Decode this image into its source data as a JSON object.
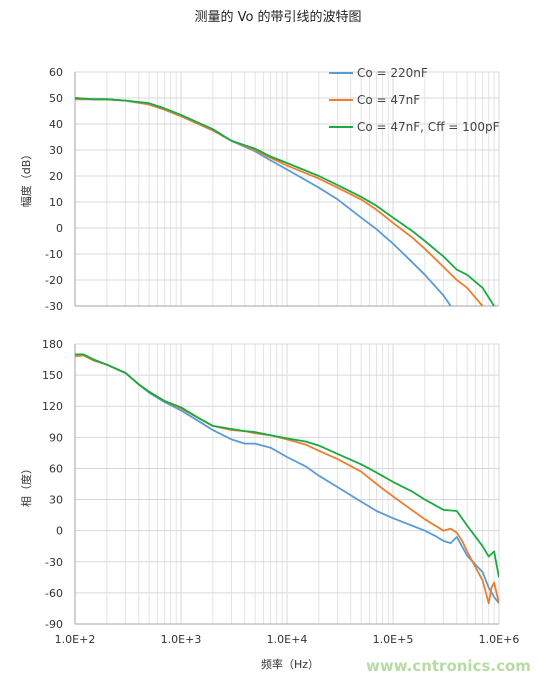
{
  "figure_title": "测量的 Vo 的带引线的波特图",
  "watermark": "www.cntronics.com",
  "colors": {
    "co220": "#5b9bd5",
    "co47": "#ed7d31",
    "co47cff": "#1aab40",
    "grid": "#d9d9d9",
    "axis": "#a6a6a6"
  },
  "chart_data": [
    {
      "type": "line",
      "id": "magnitude",
      "title": "",
      "xlabel": "",
      "ylabel": "幅度（dB）",
      "x_scale": "log",
      "xlim": [
        100,
        1000000
      ],
      "ylim": [
        -30,
        60
      ],
      "yticks": [
        60,
        50,
        40,
        30,
        20,
        10,
        0,
        -10,
        -20,
        -30
      ],
      "ytick_labels": [
        "60",
        "50",
        "40",
        "30",
        "20",
        "10",
        "0",
        "-10",
        "-20",
        "-30"
      ],
      "grid": true,
      "legend": "top-right",
      "series": [
        {
          "name": "Co = 220nF",
          "color": "#5b9bd5",
          "x": [
            100,
            150,
            200,
            300,
            500,
            700,
            1000,
            2000,
            3000,
            5000,
            7000,
            10000,
            20000,
            30000,
            50000,
            70000,
            100000,
            150000,
            200000,
            300000,
            350000
          ],
          "y": [
            50,
            49.5,
            49.5,
            49,
            47.5,
            45.5,
            43,
            37.5,
            33.5,
            29.5,
            26,
            22.5,
            15.5,
            11,
            4,
            -0.5,
            -6,
            -13,
            -18,
            -26,
            -30
          ]
        },
        {
          "name": "Co = 47nF",
          "color": "#ed7d31",
          "x": [
            100,
            150,
            200,
            300,
            500,
            700,
            1000,
            2000,
            3000,
            5000,
            7000,
            10000,
            20000,
            30000,
            50000,
            70000,
            100000,
            150000,
            200000,
            300000,
            400000,
            500000,
            700000
          ],
          "y": [
            49.5,
            49.5,
            49.5,
            49,
            47.5,
            45.5,
            43,
            37.5,
            33.5,
            30,
            27,
            24,
            19,
            15.5,
            11,
            7,
            2,
            -3.5,
            -8,
            -15,
            -20,
            -23,
            -30
          ]
        },
        {
          "name": "Co = 47nF, Cff = 100pF",
          "color": "#1aab40",
          "x": [
            100,
            150,
            200,
            300,
            500,
            700,
            1000,
            2000,
            3000,
            5000,
            7000,
            10000,
            20000,
            30000,
            50000,
            70000,
            100000,
            150000,
            200000,
            300000,
            400000,
            500000,
            700000,
            900000
          ],
          "y": [
            50,
            49.5,
            49.5,
            49,
            48,
            46,
            43.5,
            38,
            33.5,
            30.5,
            27.5,
            25,
            20,
            16.5,
            12,
            8.5,
            4,
            -1,
            -5,
            -11,
            -16,
            -18,
            -23,
            -30
          ]
        }
      ]
    },
    {
      "type": "line",
      "id": "phase",
      "title": "",
      "xlabel": "频率（Hz）",
      "ylabel": "相（度）",
      "x_scale": "log",
      "xlim": [
        100,
        1000000
      ],
      "ylim": [
        -90,
        180
      ],
      "yticks": [
        180,
        150,
        120,
        90,
        60,
        30,
        0,
        -30,
        -60,
        -90
      ],
      "ytick_labels": [
        "180",
        "150",
        "120",
        "90",
        "60",
        "30",
        "0",
        "-30",
        "-60",
        "-90"
      ],
      "xticks": [
        100,
        1000,
        10000,
        100000,
        1000000
      ],
      "xtick_labels": [
        "1.0E+2",
        "1.0E+3",
        "1.0E+4",
        "1.0E+5",
        "1.0E+6"
      ],
      "grid": true,
      "series": [
        {
          "name": "Co = 220nF",
          "color": "#5b9bd5",
          "x": [
            100,
            120,
            150,
            200,
            300,
            400,
            500,
            700,
            1000,
            1500,
            2000,
            3000,
            4000,
            5000,
            7000,
            10000,
            15000,
            20000,
            30000,
            50000,
            70000,
            100000,
            150000,
            200000,
            250000,
            300000,
            350000,
            400000,
            500000,
            700000,
            800000,
            900000,
            1000000
          ],
          "y": [
            170,
            170,
            165,
            160,
            152,
            141,
            133,
            124,
            116,
            105,
            97,
            88,
            84,
            84,
            80,
            71,
            62,
            53,
            42,
            28,
            19,
            12,
            5,
            0,
            -5,
            -10,
            -12,
            -6,
            -24,
            -40,
            -55,
            -64,
            -70
          ]
        },
        {
          "name": "Co = 47nF",
          "color": "#ed7d31",
          "x": [
            100,
            120,
            150,
            200,
            300,
            400,
            500,
            700,
            1000,
            1500,
            2000,
            3000,
            4000,
            5000,
            7000,
            10000,
            15000,
            20000,
            30000,
            50000,
            70000,
            100000,
            150000,
            200000,
            300000,
            350000,
            400000,
            450000,
            500000,
            700000,
            800000,
            850000,
            900000,
            1000000
          ],
          "y": [
            168,
            169,
            164,
            160,
            152,
            141,
            134,
            125,
            118,
            108,
            101,
            97,
            96,
            94,
            92,
            88,
            83,
            77,
            69,
            57,
            45,
            33,
            20,
            11,
            0,
            2,
            -2,
            -10,
            -20,
            -48,
            -70,
            -55,
            -50,
            -70
          ]
        },
        {
          "name": "Co = 47nF, Cff = 100pF",
          "color": "#1aab40",
          "x": [
            100,
            120,
            150,
            200,
            300,
            400,
            500,
            700,
            1000,
            1500,
            2000,
            3000,
            4000,
            5000,
            7000,
            10000,
            15000,
            20000,
            30000,
            50000,
            70000,
            100000,
            150000,
            200000,
            300000,
            400000,
            500000,
            700000,
            800000,
            900000,
            1000000
          ],
          "y": [
            170,
            170,
            165,
            160,
            152,
            141,
            134,
            125,
            119,
            108,
            101,
            98,
            96,
            95,
            92,
            89,
            86,
            82,
            74,
            64,
            56,
            47,
            38,
            30,
            20,
            19,
            5,
            -15,
            -25,
            -20,
            -45
          ]
        }
      ]
    }
  ]
}
